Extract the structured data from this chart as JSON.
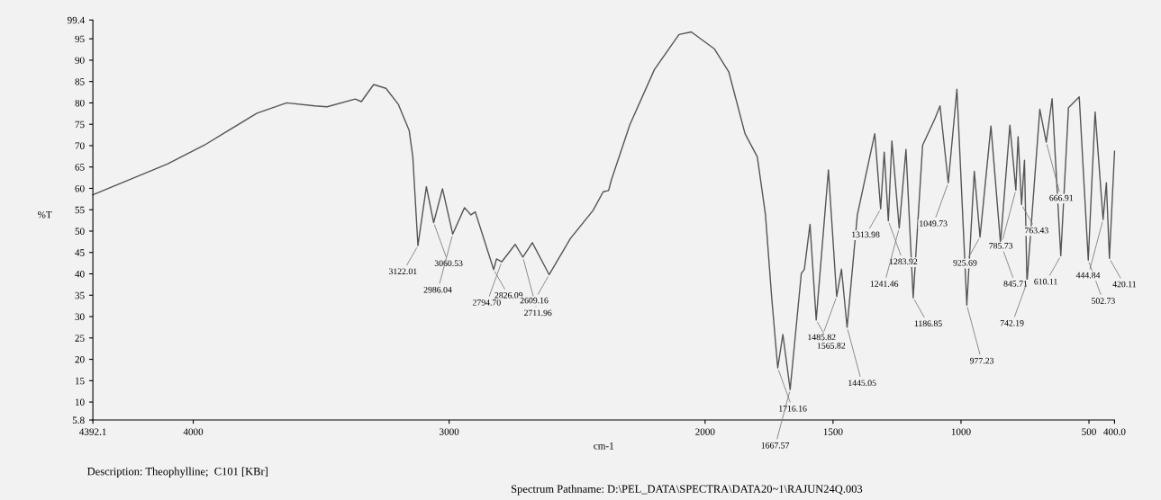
{
  "chart_data": {
    "type": "line",
    "xlabel": "cm-1",
    "ylabel": "%T",
    "xlim": [
      4392.1,
      400.0
    ],
    "xticks": [
      4392.1,
      4000,
      3000,
      2000,
      1500,
      1000,
      500,
      {
        "value": 400.0,
        "label": "400.0"
      }
    ],
    "ylim": [
      5.8,
      99.4
    ],
    "yticks": [
      5.8,
      10,
      15,
      20,
      25,
      30,
      35,
      40,
      45,
      50,
      55,
      60,
      65,
      70,
      75,
      80,
      85,
      90,
      95,
      99.4
    ],
    "grid": false,
    "legend": false,
    "marker": "none",
    "line_style": "solid",
    "series": [
      {
        "color": "#555555",
        "x": [
          4392.1,
          4101,
          3957,
          3751,
          3635,
          3525,
          3477,
          3367,
          3343,
          3295,
          3247,
          3199,
          3156,
          3142,
          3122.01,
          3089,
          3060.53,
          3026,
          2986.04,
          2940,
          2915,
          2898,
          2826.09,
          2815,
          2794.7,
          2742,
          2711.96,
          2675,
          2609.16,
          2526,
          2438,
          2398,
          2377,
          2366,
          2294,
          2198,
          2102,
          2054,
          1963,
          1907,
          1844,
          1796,
          1764,
          1740,
          1716.16,
          1696,
          1667.57,
          1624,
          1612,
          1590,
          1565.82,
          1518,
          1485.82,
          1467,
          1445.05,
          1405,
          1337,
          1313.98,
          1300,
          1283.92,
          1270,
          1241.46,
          1215,
          1186.85,
          1150,
          1102,
          1082,
          1049.73,
          1016,
          977.23,
          948,
          925.69,
          883,
          845.71,
          809,
          785.73,
          777,
          763.43,
          752,
          742.19,
          692,
          666.91,
          644,
          610.11,
          580,
          538,
          502.73,
          476,
          444.84,
          432,
          420.11,
          400.0
        ],
        "values": [
          58.5,
          65.7,
          70.1,
          77.6,
          80.0,
          79.3,
          79.1,
          80.9,
          80.3,
          84.3,
          83.4,
          79.7,
          73.5,
          67.4,
          46.6,
          60.4,
          52.0,
          59.9,
          49.3,
          55.5,
          53.8,
          54.5,
          41.0,
          43.5,
          42.8,
          46.9,
          43.9,
          47.3,
          39.8,
          48.3,
          54.8,
          59.2,
          59.5,
          62.0,
          74.9,
          87.8,
          96.0,
          96.6,
          92.6,
          87.2,
          72.8,
          67.4,
          53.8,
          34.7,
          18.0,
          25.8,
          12.9,
          40.1,
          41.1,
          51.6,
          29.2,
          64.3,
          34.7,
          41.1,
          27.5,
          53.8,
          72.8,
          55.2,
          68.5,
          52.4,
          71.1,
          50.7,
          69.1,
          34.4,
          70.1,
          76.3,
          79.3,
          61.3,
          83.2,
          32.7,
          64.0,
          48.6,
          74.6,
          47.2,
          74.8,
          59.6,
          72.1,
          56.2,
          66.6,
          38.0,
          78.5,
          70.8,
          81.0,
          44.2,
          78.9,
          81.4,
          43.2,
          77.9,
          52.7,
          61.3,
          43.6,
          68.7
        ]
      }
    ],
    "annotations": [
      {
        "text": "3122.01",
        "x": 3122.01,
        "y": 46.6
      },
      {
        "text": "3060.53",
        "x": 3060.53,
        "y": 52.0
      },
      {
        "text": "2986.04",
        "x": 2986.04,
        "y": 49.3
      },
      {
        "text": "2826.09",
        "x": 2826.09,
        "y": 41.0
      },
      {
        "text": "2794.70",
        "x": 2794.7,
        "y": 42.8
      },
      {
        "text": "2711.96",
        "x": 2711.96,
        "y": 43.9
      },
      {
        "text": "2609.16",
        "x": 2609.16,
        "y": 39.8
      },
      {
        "text": "1716.16",
        "x": 1716.16,
        "y": 18.0
      },
      {
        "text": "1667.57",
        "x": 1667.57,
        "y": 12.9
      },
      {
        "text": "1565.82",
        "x": 1565.82,
        "y": 29.2
      },
      {
        "text": "1485.82",
        "x": 1485.82,
        "y": 34.7
      },
      {
        "text": "1445.05",
        "x": 1445.05,
        "y": 27.5
      },
      {
        "text": "1313.98",
        "x": 1313.98,
        "y": 55.2
      },
      {
        "text": "1283.92",
        "x": 1283.92,
        "y": 52.4
      },
      {
        "text": "1241.46",
        "x": 1241.46,
        "y": 50.7
      },
      {
        "text": "1186.85",
        "x": 1186.85,
        "y": 34.4
      },
      {
        "text": "1049.73",
        "x": 1049.73,
        "y": 61.3
      },
      {
        "text": "977.23",
        "x": 977.23,
        "y": 32.7
      },
      {
        "text": "925.69",
        "x": 925.69,
        "y": 48.6
      },
      {
        "text": "845.71",
        "x": 845.71,
        "y": 47.2
      },
      {
        "text": "785.73",
        "x": 785.73,
        "y": 59.6
      },
      {
        "text": "763.43",
        "x": 763.43,
        "y": 56.2
      },
      {
        "text": "742.19",
        "x": 742.19,
        "y": 38.0
      },
      {
        "text": "666.91",
        "x": 666.91,
        "y": 70.8
      },
      {
        "text": "610.11",
        "x": 610.11,
        "y": 44.2
      },
      {
        "text": "502.73",
        "x": 502.73,
        "y": 43.2
      },
      {
        "text": "444.84",
        "x": 444.84,
        "y": 52.7
      },
      {
        "text": "420.11",
        "x": 420.11,
        "y": 43.6
      },
      "Description: Theophylline;  C101 [KBr]",
      "Spectrum Pathname: D:\\PEL_DATA\\SPECTRA\\DATA20~1\\RAJUN24Q.003"
    ]
  }
}
